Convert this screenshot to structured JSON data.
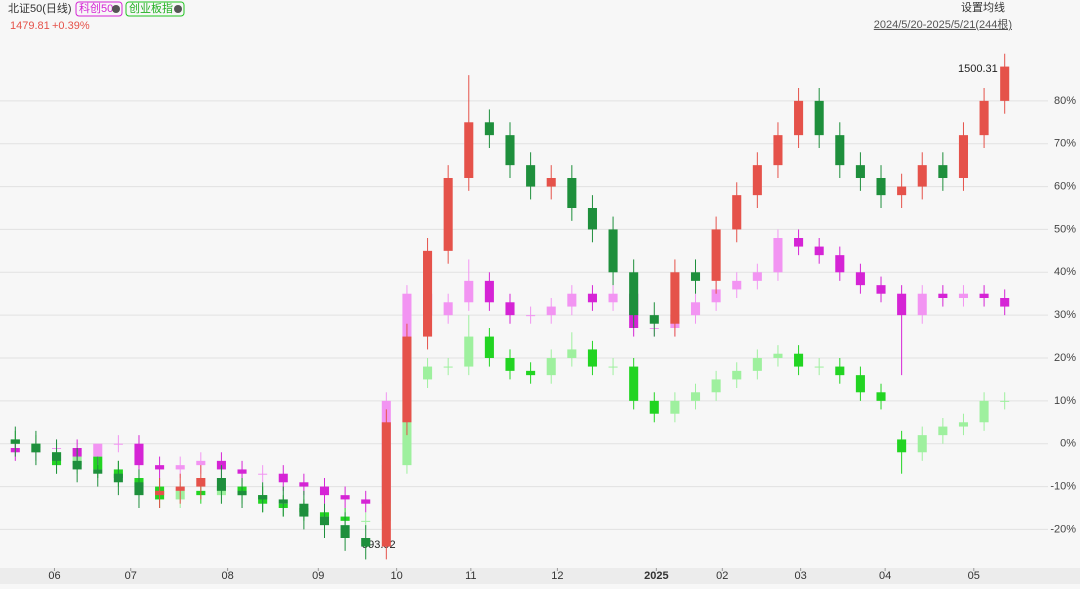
{
  "header": {
    "title": "北证50(日线)",
    "tags": [
      "科创50",
      "创业板指"
    ],
    "price": "1479.81",
    "change": "+0.39%",
    "ma_button": "设置均线",
    "range": "2024/5/20-2025/5/21(244根)"
  },
  "chart_data": {
    "type": "candlestick",
    "annotations": [
      "1500.31",
      "593.92"
    ],
    "xlim": [
      0,
      49
    ],
    "xticks": [
      {
        "value": 2.4,
        "label": "06"
      },
      {
        "value": 6.1,
        "label": "07"
      },
      {
        "value": 10.8,
        "label": "08"
      },
      {
        "value": 15.2,
        "label": "09"
      },
      {
        "value": 19.0,
        "label": "10"
      },
      {
        "value": 22.6,
        "label": "11"
      },
      {
        "value": 26.8,
        "label": "12"
      },
      {
        "value": 31.6,
        "label": "2025"
      },
      {
        "value": 34.8,
        "label": "02"
      },
      {
        "value": 38.6,
        "label": "03"
      },
      {
        "value": 42.7,
        "label": "04"
      },
      {
        "value": 47.0,
        "label": "05"
      }
    ],
    "ylim": [
      -29,
      97
    ],
    "yticks": [
      {
        "value": -20,
        "label": "-20%"
      },
      {
        "value": -10,
        "label": "-10%"
      },
      {
        "value": 0,
        "label": "0%"
      },
      {
        "value": 10,
        "label": "10%"
      },
      {
        "value": 20,
        "label": "20%"
      },
      {
        "value": 30,
        "label": "30%"
      },
      {
        "value": 40,
        "label": "40%"
      },
      {
        "value": 50,
        "label": "50%"
      },
      {
        "value": 60,
        "label": "60%"
      },
      {
        "value": 70,
        "label": "70%"
      },
      {
        "value": 80,
        "label": "80%"
      }
    ],
    "grid": true,
    "series": [
      {
        "name": "创业板指",
        "up_color": "#9ef09e",
        "down_color": "#22d422",
        "open": [
          1,
          0,
          -2,
          -5,
          -3,
          -6,
          -8,
          -10,
          -13,
          -11,
          -12,
          -10,
          -12,
          -14,
          -15,
          -16,
          -17,
          -18,
          -18,
          -5,
          15,
          18,
          18,
          25,
          20,
          17,
          16,
          20,
          22,
          18,
          18,
          10,
          7,
          10,
          12,
          15,
          17,
          20,
          21,
          18,
          18,
          16,
          12,
          1,
          -2,
          2,
          4,
          5,
          10
        ],
        "high": [
          3,
          2,
          0,
          -1,
          -1,
          -4,
          -6,
          -8,
          -9,
          -9,
          -8,
          -8,
          -10,
          -12,
          -13,
          -14,
          -15,
          -16,
          -3,
          17,
          20,
          20,
          30,
          27,
          22,
          19,
          22,
          26,
          24,
          20,
          20,
          12,
          12,
          14,
          17,
          19,
          22,
          23,
          23,
          20,
          20,
          18,
          14,
          3,
          4,
          6,
          7,
          12,
          12
        ],
        "low": [
          -2,
          -4,
          -7,
          -7,
          -8,
          -10,
          -12,
          -15,
          -15,
          -14,
          -14,
          -14,
          -16,
          -17,
          -18,
          -19,
          -20,
          -20,
          -20,
          -7,
          13,
          16,
          16,
          18,
          15,
          14,
          14,
          18,
          16,
          16,
          8,
          5,
          5,
          8,
          10,
          13,
          15,
          18,
          16,
          16,
          14,
          10,
          8,
          -7,
          -4,
          0,
          2,
          3,
          8
        ],
        "close": [
          0,
          -2,
          -5,
          -3,
          -6,
          -8,
          -10,
          -13,
          -11,
          -12,
          -10,
          -12,
          -14,
          -15,
          -16,
          -17,
          -18,
          -18,
          -5,
          15,
          18,
          18,
          25,
          20,
          17,
          16,
          20,
          22,
          18,
          18,
          10,
          7,
          10,
          12,
          15,
          17,
          20,
          21,
          18,
          18,
          16,
          12,
          10,
          -2,
          2,
          4,
          5,
          10,
          10
        ]
      },
      {
        "name": "科创50",
        "up_color": "#f294f2",
        "down_color": "#d524d5",
        "open": [
          -1,
          -2,
          -1,
          -1,
          -3,
          0,
          0,
          -5,
          -6,
          -5,
          -4,
          -6,
          -7,
          -7,
          -9,
          -10,
          -12,
          -13,
          -14,
          10,
          35,
          30,
          33,
          38,
          33,
          30,
          30,
          32,
          35,
          33,
          35,
          27,
          27,
          30,
          33,
          36,
          38,
          40,
          48,
          46,
          44,
          40,
          37,
          35,
          30,
          35,
          34,
          35,
          34
        ],
        "high": [
          1,
          1,
          1,
          1,
          -1,
          2,
          2,
          -3,
          -3,
          -2,
          -2,
          -4,
          -5,
          -5,
          -7,
          -8,
          -10,
          -11,
          12,
          37,
          37,
          35,
          43,
          40,
          35,
          32,
          34,
          37,
          37,
          37,
          37,
          29,
          32,
          35,
          38,
          40,
          42,
          50,
          50,
          48,
          46,
          42,
          39,
          37,
          37,
          37,
          37,
          37,
          36
        ],
        "low": [
          -4,
          -4,
          -3,
          -5,
          -5,
          -2,
          -7,
          -8,
          -8,
          -7,
          -8,
          -9,
          -9,
          -11,
          -12,
          -14,
          -15,
          -16,
          -16,
          8,
          28,
          28,
          31,
          31,
          28,
          28,
          28,
          30,
          31,
          31,
          25,
          25,
          25,
          28,
          31,
          34,
          36,
          38,
          44,
          42,
          38,
          35,
          33,
          16,
          28,
          32,
          32,
          32,
          30
        ],
        "close": [
          -2,
          -1,
          -1,
          -3,
          0,
          0,
          -5,
          -6,
          -5,
          -4,
          -6,
          -7,
          -7,
          -9,
          -10,
          -12,
          -13,
          -14,
          10,
          35,
          30,
          33,
          38,
          33,
          30,
          30,
          32,
          35,
          33,
          35,
          27,
          27,
          30,
          33,
          36,
          38,
          40,
          48,
          46,
          44,
          40,
          37,
          35,
          30,
          35,
          34,
          35,
          34,
          32
        ]
      },
      {
        "name": "北证50",
        "up_color": "#e5524a",
        "down_color": "#1e8f3c",
        "open": [
          1,
          0,
          -2,
          -4,
          -6,
          -7,
          -9,
          -12,
          -11,
          -10,
          -8,
          -11,
          -12,
          -13,
          -14,
          -17,
          -19,
          -22,
          -24,
          5,
          25,
          45,
          62,
          75,
          72,
          65,
          60,
          62,
          55,
          50,
          40,
          30,
          28,
          40,
          38,
          50,
          58,
          65,
          72,
          80,
          72,
          65,
          62,
          58,
          60,
          65,
          62,
          72,
          80
        ],
        "high": [
          4,
          3,
          1,
          -1,
          -3,
          -4,
          -6,
          -8,
          -7,
          -5,
          -5,
          -8,
          -9,
          -10,
          -11,
          -14,
          -16,
          -19,
          8,
          28,
          48,
          65,
          86,
          78,
          75,
          68,
          65,
          65,
          58,
          53,
          43,
          33,
          43,
          43,
          53,
          61,
          68,
          75,
          83,
          83,
          75,
          68,
          65,
          63,
          68,
          68,
          75,
          83,
          91
        ],
        "low": [
          -3,
          -5,
          -7,
          -9,
          -10,
          -12,
          -15,
          -15,
          -14,
          -13,
          -14,
          -15,
          -16,
          -17,
          -20,
          -22,
          -25,
          -27,
          -27,
          2,
          22,
          42,
          59,
          69,
          62,
          57,
          57,
          52,
          47,
          37,
          27,
          25,
          25,
          35,
          35,
          47,
          55,
          62,
          69,
          69,
          62,
          59,
          55,
          55,
          57,
          59,
          59,
          69,
          77
        ],
        "close": [
          0,
          -2,
          -4,
          -6,
          -7,
          -9,
          -12,
          -11,
          -10,
          -8,
          -11,
          -12,
          -13,
          -14,
          -17,
          -19,
          -22,
          -24,
          5,
          25,
          45,
          62,
          75,
          72,
          65,
          60,
          62,
          55,
          50,
          40,
          30,
          28,
          40,
          38,
          50,
          58,
          65,
          72,
          80,
          72,
          65,
          62,
          58,
          60,
          65,
          62,
          72,
          80,
          88
        ]
      }
    ]
  }
}
